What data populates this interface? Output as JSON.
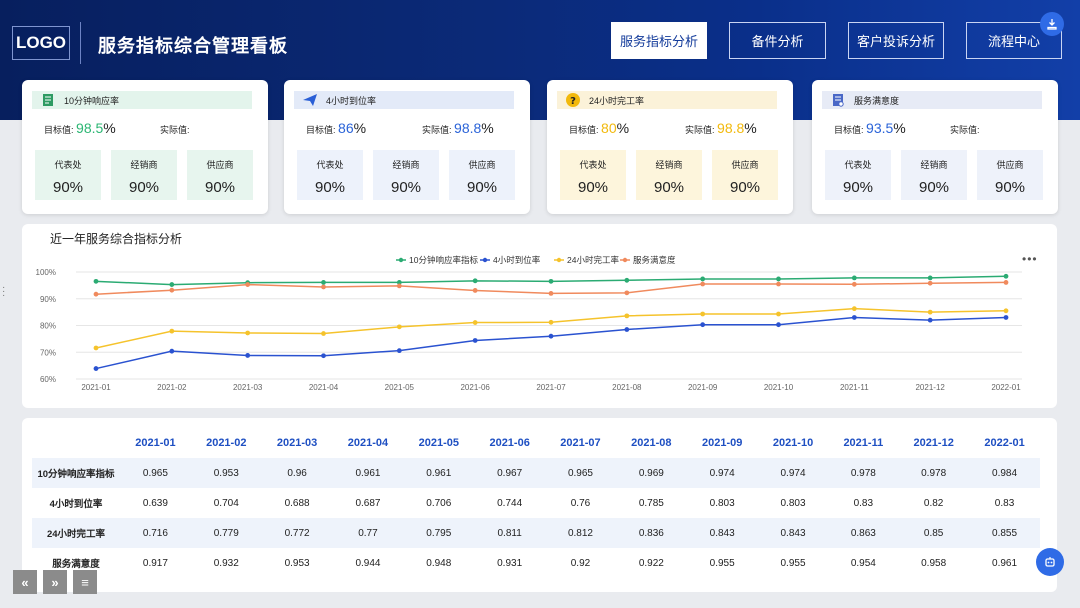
{
  "header": {
    "logo": "LOGO",
    "title": "服务指标综合管理看板",
    "nav": [
      "服务指标分析",
      "备件分析",
      "客户投诉分析",
      "流程中心"
    ],
    "active_nav": 0
  },
  "kpis": [
    {
      "name": "10分钟响应率",
      "icon": "book-icon",
      "head_bg": "#e3f4ec",
      "icon_color": "#2e9b63",
      "target_label": "目标值:",
      "target_value": "98.5",
      "target_color": "#2bb673",
      "target_unit": "%",
      "actual_label": "实际值:",
      "actual_value": "",
      "actual_unit": "",
      "box_bg": "#e7f5ee",
      "boxes": [
        {
          "label": "代表处",
          "value": "90%"
        },
        {
          "label": "经销商",
          "value": "90%"
        },
        {
          "label": "供应商",
          "value": "90%"
        }
      ]
    },
    {
      "name": "4小时到位率",
      "icon": "paper-plane-icon",
      "head_bg": "#e3eaf8",
      "icon_color": "#2a5fd6",
      "target_label": "目标值:",
      "target_value": "86",
      "target_color": "#2a63d8",
      "target_unit": "%",
      "actual_label": "实际值:",
      "actual_value": "98.8",
      "actual_unit": "%",
      "actual_color": "#2a63d8",
      "box_bg": "#edf2fb",
      "boxes": [
        {
          "label": "代表处",
          "value": "90%"
        },
        {
          "label": "经销商",
          "value": "90%"
        },
        {
          "label": "供应商",
          "value": "90%"
        }
      ]
    },
    {
      "name": "24小时完工率",
      "icon": "question-icon",
      "head_bg": "#fbf2d9",
      "icon_color": "#f2b90c",
      "target_label": "目标值:",
      "target_value": "80",
      "target_color": "#f2b90c",
      "target_unit": "%",
      "actual_label": "实际值:",
      "actual_value": "98.8",
      "actual_unit": "%",
      "actual_color": "#f2b90c",
      "box_bg": "#fdf5dc",
      "boxes": [
        {
          "label": "代表处",
          "value": "90%"
        },
        {
          "label": "经销商",
          "value": "90%"
        },
        {
          "label": "供应商",
          "value": "90%"
        }
      ]
    },
    {
      "name": "服务满意度",
      "icon": "document-icon",
      "head_bg": "#e7ebf6",
      "icon_color": "#4a68c7",
      "target_label": "目标值:",
      "target_value": "93.5",
      "target_color": "#2a63d8",
      "target_unit": "%",
      "actual_label": "实际值:",
      "actual_value": "",
      "actual_unit": "",
      "box_bg": "#eef2fa",
      "boxes": [
        {
          "label": "代表处",
          "value": "90%"
        },
        {
          "label": "经销商",
          "value": "90%"
        },
        {
          "label": "供应商",
          "value": "90%"
        }
      ]
    }
  ],
  "chart_title": "近一年服务综合指标分析",
  "more": "•••",
  "chart_data": {
    "type": "line",
    "title": "近一年服务综合指标分析",
    "categories": [
      "2021-01",
      "2021-02",
      "2021-03",
      "2021-04",
      "2021-05",
      "2021-06",
      "2021-07",
      "2021-08",
      "2021-09",
      "2021-10",
      "2021-11",
      "2021-12",
      "2022-01"
    ],
    "ylim": [
      60,
      100
    ],
    "yticks": [
      "60%",
      "70%",
      "80%",
      "90%",
      "100%"
    ],
    "legend_position": "top-center",
    "series": [
      {
        "name": "10分钟响应率指标",
        "color": "#2bab73",
        "values": [
          96.5,
          95.3,
          96,
          96.1,
          96.1,
          96.7,
          96.5,
          96.9,
          97.4,
          97.4,
          97.8,
          97.8,
          98.4
        ]
      },
      {
        "name": "4小时到位率",
        "color": "#2a52d0",
        "values": [
          63.9,
          70.4,
          68.8,
          68.7,
          70.6,
          74.4,
          76,
          78.5,
          80.3,
          80.3,
          83,
          82,
          83
        ]
      },
      {
        "name": "24小时完工率",
        "color": "#f5c32c",
        "values": [
          71.6,
          77.9,
          77.2,
          77,
          79.5,
          81.1,
          81.2,
          83.6,
          84.3,
          84.3,
          86.3,
          85,
          85.5
        ]
      },
      {
        "name": "服务满意度",
        "color": "#f08a5d",
        "values": [
          91.7,
          93.2,
          95.3,
          94.4,
          94.8,
          93.1,
          92,
          92.2,
          95.5,
          95.5,
          95.4,
          95.8,
          96.1
        ]
      }
    ]
  },
  "table": {
    "headers": [
      "2021-01",
      "2021-02",
      "2021-03",
      "2021-04",
      "2021-05",
      "2021-06",
      "2021-07",
      "2021-08",
      "2021-09",
      "2021-10",
      "2021-11",
      "2021-12",
      "2022-01"
    ],
    "rows": [
      {
        "label": "10分钟响应率指标",
        "values": [
          "0.965",
          "0.953",
          "0.96",
          "0.961",
          "0.961",
          "0.967",
          "0.965",
          "0.969",
          "0.974",
          "0.974",
          "0.978",
          "0.978",
          "0.984"
        ]
      },
      {
        "label": "4小时到位率",
        "values": [
          "0.639",
          "0.704",
          "0.688",
          "0.687",
          "0.706",
          "0.744",
          "0.76",
          "0.785",
          "0.803",
          "0.803",
          "0.83",
          "0.82",
          "0.83"
        ]
      },
      {
        "label": "24小时完工率",
        "values": [
          "0.716",
          "0.779",
          "0.772",
          "0.77",
          "0.795",
          "0.811",
          "0.812",
          "0.836",
          "0.843",
          "0.843",
          "0.863",
          "0.85",
          "0.855"
        ]
      },
      {
        "label": "服务满意度",
        "values": [
          "0.917",
          "0.932",
          "0.953",
          "0.944",
          "0.948",
          "0.931",
          "0.92",
          "0.922",
          "0.955",
          "0.955",
          "0.954",
          "0.958",
          "0.961"
        ]
      }
    ]
  },
  "controls": {
    "prev": "«",
    "next": "»",
    "menu": "≡"
  }
}
